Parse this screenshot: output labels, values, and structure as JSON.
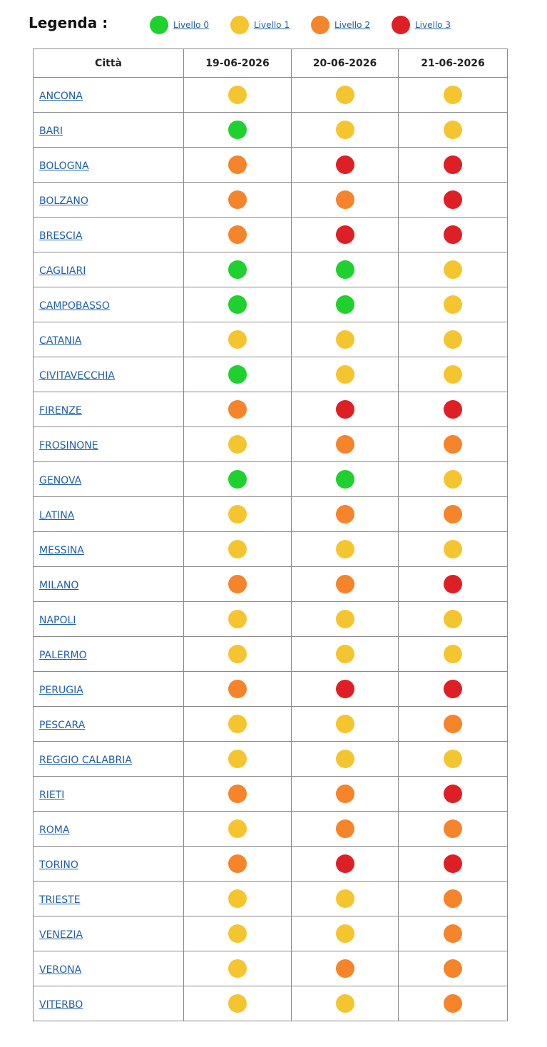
{
  "legend": {
    "title": "Legenda :",
    "items": [
      {
        "label": "Livello 0",
        "color": "#1fd12e"
      },
      {
        "label": "Livello 1",
        "color": "#f5c530"
      },
      {
        "label": "Livello 2",
        "color": "#f5842a"
      },
      {
        "label": "Livello 3",
        "color": "#de1f26"
      }
    ]
  },
  "table": {
    "headers": [
      "Città",
      "19-06-2026",
      "20-06-2026",
      "21-06-2026"
    ],
    "rows": [
      {
        "city": "ANCONA",
        "levels": [
          1,
          1,
          1
        ]
      },
      {
        "city": "BARI",
        "levels": [
          0,
          1,
          1
        ]
      },
      {
        "city": "BOLOGNA",
        "levels": [
          2,
          3,
          3
        ]
      },
      {
        "city": "BOLZANO",
        "levels": [
          2,
          2,
          3
        ]
      },
      {
        "city": "BRESCIA",
        "levels": [
          2,
          3,
          3
        ]
      },
      {
        "city": "CAGLIARI",
        "levels": [
          0,
          0,
          1
        ]
      },
      {
        "city": "CAMPOBASSO",
        "levels": [
          0,
          0,
          1
        ]
      },
      {
        "city": "CATANIA",
        "levels": [
          1,
          1,
          1
        ]
      },
      {
        "city": "CIVITAVECCHIA",
        "levels": [
          0,
          1,
          1
        ]
      },
      {
        "city": "FIRENZE",
        "levels": [
          2,
          3,
          3
        ]
      },
      {
        "city": "FROSINONE",
        "levels": [
          1,
          2,
          2
        ]
      },
      {
        "city": "GENOVA",
        "levels": [
          0,
          0,
          1
        ]
      },
      {
        "city": "LATINA",
        "levels": [
          1,
          2,
          2
        ]
      },
      {
        "city": "MESSINA",
        "levels": [
          1,
          1,
          1
        ]
      },
      {
        "city": "MILANO",
        "levels": [
          2,
          2,
          3
        ]
      },
      {
        "city": "NAPOLI",
        "levels": [
          1,
          1,
          1
        ]
      },
      {
        "city": "PALERMO",
        "levels": [
          1,
          1,
          1
        ]
      },
      {
        "city": "PERUGIA",
        "levels": [
          2,
          3,
          3
        ]
      },
      {
        "city": "PESCARA",
        "levels": [
          1,
          1,
          2
        ]
      },
      {
        "city": "REGGIO CALABRIA",
        "levels": [
          1,
          1,
          1
        ]
      },
      {
        "city": "RIETI",
        "levels": [
          2,
          2,
          3
        ]
      },
      {
        "city": "ROMA",
        "levels": [
          1,
          2,
          2
        ]
      },
      {
        "city": "TORINO",
        "levels": [
          2,
          3,
          3
        ]
      },
      {
        "city": "TRIESTE",
        "levels": [
          1,
          1,
          2
        ]
      },
      {
        "city": "VENEZIA",
        "levels": [
          1,
          1,
          2
        ]
      },
      {
        "city": "VERONA",
        "levels": [
          1,
          2,
          2
        ]
      },
      {
        "city": "VITERBO",
        "levels": [
          1,
          1,
          2
        ]
      }
    ]
  }
}
